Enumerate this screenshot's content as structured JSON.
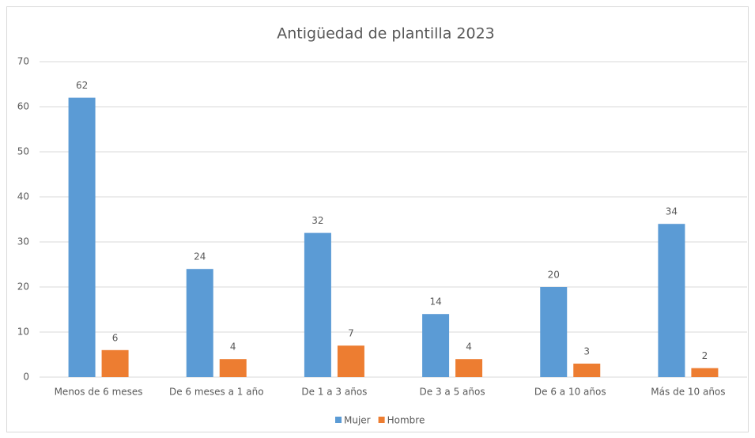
{
  "chart_data": {
    "type": "bar",
    "title": "Antigüedad de plantilla 2023",
    "categories": [
      "Menos de 6 meses",
      "De 6 meses a 1 año",
      "De 1 a 3 años",
      "De 3 a 5 años",
      "De 6 a 10 años",
      "Más de 10 años"
    ],
    "series": [
      {
        "name": "Mujer",
        "color": "#5b9bd5",
        "values": [
          62,
          24,
          32,
          14,
          20,
          34
        ]
      },
      {
        "name": "Hombre",
        "color": "#ed7d31",
        "values": [
          6,
          4,
          7,
          4,
          3,
          2
        ]
      }
    ],
    "ylim": [
      0,
      70
    ],
    "yticks": [
      0,
      10,
      20,
      30,
      40,
      50,
      60,
      70
    ],
    "grid": true,
    "legend": "bottom"
  }
}
